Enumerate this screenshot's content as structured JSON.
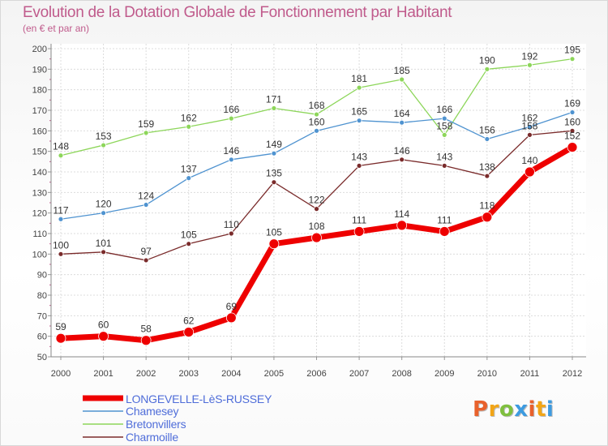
{
  "title": "Evolution de la Dotation Globale de Fonctionnement par Habitant",
  "subtitle": "(en € et par an)",
  "logo_text": "Proxiti",
  "chart_data": {
    "type": "line",
    "title": "Evolution de la Dotation Globale de Fonctionnement par Habitant",
    "subtitle": "(en € et par an)",
    "xlabel": "",
    "ylabel": "",
    "x": [
      "2000",
      "2001",
      "2002",
      "2003",
      "2004",
      "2005",
      "2006",
      "2007",
      "2008",
      "2009",
      "2010",
      "2011",
      "2012"
    ],
    "ylim": [
      50,
      200
    ],
    "yticks": [
      50,
      60,
      70,
      80,
      90,
      100,
      110,
      120,
      130,
      140,
      150,
      160,
      170,
      180,
      190,
      200
    ],
    "grid": true,
    "legend_position": "bottom-left",
    "series": [
      {
        "name": "Bretonvillers",
        "color": "#8dd65a",
        "values": [
          148,
          153,
          159,
          162,
          166,
          171,
          168,
          181,
          185,
          158,
          190,
          192,
          195
        ]
      },
      {
        "name": "Chamesey",
        "color": "#4f93d0",
        "values": [
          117,
          120,
          124,
          137,
          146,
          149,
          160,
          165,
          164,
          166,
          156,
          162,
          169
        ]
      },
      {
        "name": "Charmoille",
        "color": "#7a2b2b",
        "values": [
          100,
          101,
          97,
          105,
          110,
          135,
          122,
          143,
          146,
          143,
          138,
          158,
          160
        ]
      },
      {
        "name": "LONGEVELLE-LèS-RUSSEY",
        "color": "#ee0000",
        "values": [
          59,
          60,
          58,
          62,
          69,
          105,
          108,
          111,
          114,
          111,
          118,
          140,
          152
        ]
      }
    ],
    "legend_order": [
      "LONGEVELLE-LèS-RUSSEY",
      "Chamesey",
      "Bretonvillers",
      "Charmoille"
    ]
  }
}
